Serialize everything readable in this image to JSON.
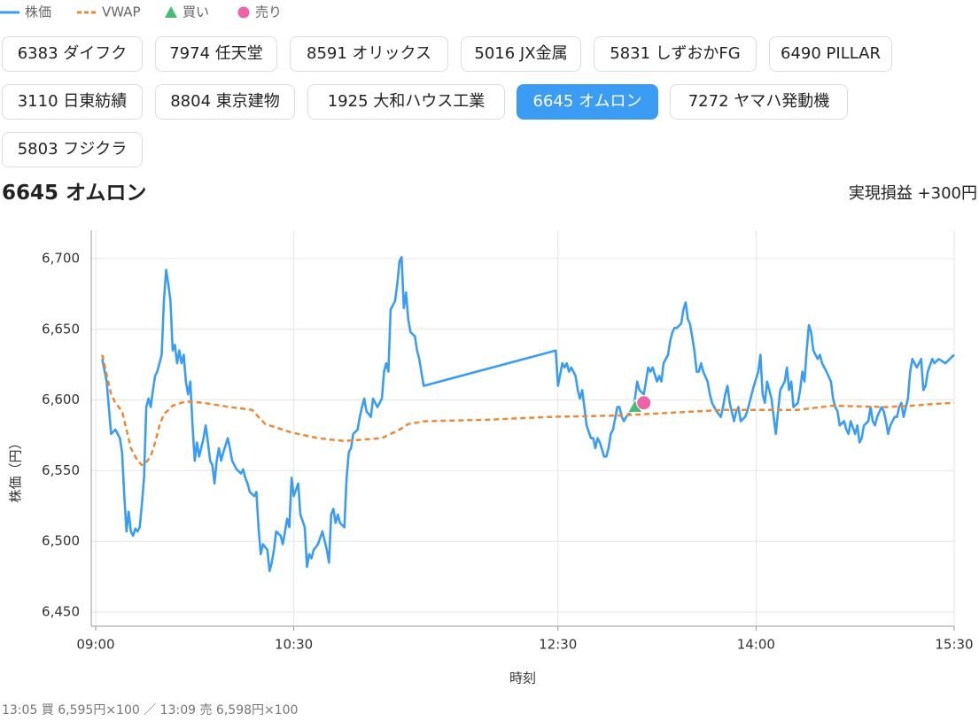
{
  "tabs": [
    "6383 ダイフク",
    "7974 任天堂",
    "8591 オリックス",
    "5016 JX金属",
    "5831 しずおかFG",
    "6490 PILLAR",
    "3110 日東紡績",
    "8804 東京建物",
    "1925 大和ハウス工業",
    "6645 オムロン",
    "7272 ヤマハ発動機",
    "5803 フジクラ"
  ],
  "active_tab": 9,
  "header": {
    "title": "6645 オムロン",
    "pnl": "実現損益 +300円"
  },
  "chart_data": {
    "type": "line",
    "x_label": "時刻",
    "y_label": "株価（円）",
    "xlim": [
      538,
      930
    ],
    "ylim": [
      6440,
      6720
    ],
    "xticks": [
      {
        "value": 540,
        "label": "09:00"
      },
      {
        "value": 630,
        "label": "10:30"
      },
      {
        "value": 750,
        "label": "12:30"
      },
      {
        "value": 840,
        "label": "14:00"
      },
      {
        "value": 930,
        "label": "15:30"
      }
    ],
    "yticks": [
      {
        "value": 6450,
        "label": "6,450"
      },
      {
        "value": 6500,
        "label": "6,500"
      },
      {
        "value": 6550,
        "label": "6,550"
      },
      {
        "value": 6600,
        "label": "6,600"
      },
      {
        "value": 6650,
        "label": "6,650"
      },
      {
        "value": 6700,
        "label": "6,700"
      }
    ],
    "grid": true,
    "legend": "top-left",
    "series": [
      {
        "name": "株価",
        "color": "#3a9df3",
        "style": "solid",
        "x": [
          543,
          545,
          547,
          549,
          551,
          552,
          553,
          554,
          555,
          556,
          557,
          558,
          559,
          560,
          561,
          562,
          563,
          564,
          565,
          566,
          567,
          568,
          569,
          570,
          571,
          572,
          573,
          574,
          575,
          576,
          577,
          578,
          579,
          580,
          581,
          582,
          583,
          584,
          585,
          586,
          587,
          589,
          590,
          591,
          592,
          593,
          594,
          595,
          596,
          597,
          598,
          600,
          601,
          602,
          604,
          606,
          607,
          608,
          609,
          610,
          612,
          613,
          614,
          615,
          616,
          618,
          619,
          620,
          621,
          622,
          624,
          625,
          626,
          627,
          628,
          629,
          630,
          632,
          633,
          635,
          636,
          637,
          638,
          639,
          641,
          643,
          645,
          646,
          647,
          648,
          649,
          650,
          651,
          653,
          654,
          655,
          656,
          657,
          659,
          660,
          661,
          662,
          663,
          665,
          666,
          667,
          668,
          670,
          671,
          672,
          673,
          674,
          676,
          677,
          678,
          679,
          680,
          681,
          682,
          683,
          685,
          686,
          687,
          689,
          749,
          750,
          752,
          753,
          754,
          755,
          756,
          758,
          759,
          760,
          761,
          762,
          763,
          765,
          766,
          767,
          768,
          769,
          771,
          772,
          773,
          774,
          775,
          777,
          778,
          779,
          780,
          781,
          783,
          784,
          785,
          786,
          787,
          789,
          790,
          791,
          792,
          793,
          795,
          796,
          797,
          798,
          800,
          801,
          802,
          803,
          804,
          806,
          807,
          808,
          809,
          810,
          812,
          813,
          814,
          815,
          816,
          818,
          819,
          820,
          821,
          822,
          824,
          825,
          826,
          827,
          828,
          830,
          831,
          832,
          833,
          835,
          836,
          837,
          838,
          839,
          841,
          842,
          843,
          844,
          845,
          847,
          848,
          849,
          850,
          851,
          853,
          854,
          855,
          856,
          857,
          859,
          860,
          861,
          862,
          863,
          864,
          865,
          866,
          868,
          869,
          870,
          871,
          872,
          874,
          875,
          876,
          877,
          878,
          880,
          881,
          882,
          883,
          885,
          886,
          887,
          888,
          889,
          891,
          892,
          893,
          894,
          895,
          897,
          898,
          899,
          900,
          901,
          903,
          904,
          905,
          906,
          907,
          909,
          910,
          911,
          912,
          913,
          915,
          916,
          917,
          918,
          920,
          921,
          923,
          926,
          928,
          930
        ],
        "values": [
          6629,
          6613,
          6576,
          6579,
          6573,
          6563,
          6532,
          6507,
          6521,
          6507,
          6504,
          6509,
          6507,
          6510,
          6526,
          6545,
          6595,
          6601,
          6595,
          6607,
          6617,
          6620,
          6626,
          6632,
          6670,
          6692,
          6682,
          6670,
          6635,
          6639,
          6626,
          6635,
          6626,
          6632,
          6613,
          6604,
          6613,
          6582,
          6557,
          6570,
          6560,
          6573,
          6582,
          6570,
          6557,
          6554,
          6541,
          6557,
          6566,
          6557,
          6563,
          6573,
          6566,
          6557,
          6551,
          6548,
          6551,
          6545,
          6541,
          6535,
          6532,
          6535,
          6510,
          6491,
          6498,
          6494,
          6479,
          6485,
          6494,
          6507,
          6504,
          6498,
          6507,
          6516,
          6510,
          6545,
          6532,
          6541,
          6519,
          6510,
          6482,
          6491,
          6488,
          6494,
          6498,
          6507,
          6494,
          6485,
          6519,
          6523,
          6513,
          6519,
          6513,
          6510,
          6545,
          6563,
          6566,
          6576,
          6579,
          6588,
          6595,
          6601,
          6592,
          6588,
          6601,
          6598,
          6595,
          6601,
          6620,
          6626,
          6620,
          6664,
          6670,
          6682,
          6698,
          6701,
          6665,
          6676,
          6657,
          6648,
          6645,
          6635,
          6629,
          6610,
          6635,
          6610,
          6626,
          6623,
          6626,
          6620,
          6623,
          6617,
          6607,
          6601,
          6607,
          6595,
          6582,
          6573,
          6573,
          6566,
          6573,
          6570,
          6560,
          6560,
          6566,
          6576,
          6579,
          6595,
          6595,
          6588,
          6585,
          6588,
          6592,
          6595,
          6601,
          6613,
          6607,
          6604,
          6613,
          6623,
          6620,
          6623,
          6613,
          6617,
          6613,
          6626,
          6632,
          6642,
          6648,
          6651,
          6651,
          6654,
          6664,
          6669,
          6657,
          6654,
          6635,
          6620,
          6620,
          6626,
          6620,
          6613,
          6604,
          6598,
          6595,
          6592,
          6588,
          6595,
          6604,
          6610,
          6598,
          6585,
          6592,
          6595,
          6585,
          6588,
          6592,
          6598,
          6604,
          6610,
          6620,
          6632,
          6604,
          6598,
          6613,
          6601,
          6588,
          6576,
          6592,
          6607,
          6613,
          6623,
          6607,
          6613,
          6595,
          6598,
          6607,
          6620,
          6613,
          6635,
          6653,
          6648,
          6635,
          6629,
          6632,
          6626,
          6623,
          6620,
          6613,
          6601,
          6595,
          6592,
          6582,
          6585,
          6579,
          6576,
          6585,
          6576,
          6582,
          6570,
          6573,
          6582,
          6585,
          6595,
          6585,
          6582,
          6588,
          6595,
          6592,
          6585,
          6576,
          6582,
          6588,
          6588,
          6595,
          6598,
          6588,
          6601,
          6620,
          6629,
          6626,
          6623,
          6629,
          6607,
          6610,
          6620,
          6629,
          6626,
          6629,
          6626,
          6629,
          6632
        ]
      },
      {
        "name": "VWAP",
        "color": "#ed8936",
        "style": "dashed",
        "x": [
          543,
          547,
          549,
          552,
          554,
          556,
          559,
          561,
          563,
          565,
          567,
          569,
          571,
          575,
          581,
          589,
          601,
          611,
          614,
          617,
          623,
          629,
          641,
          653,
          670,
          678,
          682,
          690,
          718,
          746,
          778,
          802,
          826,
          859,
          875,
          899,
          911,
          919,
          930
        ],
        "values": [
          6632,
          6604,
          6598,
          6592,
          6579,
          6566,
          6557,
          6554,
          6556,
          6560,
          6570,
          6582,
          6590,
          6596,
          6599,
          6598,
          6595,
          6593,
          6588,
          6583,
          6580,
          6577,
          6573,
          6571,
          6573,
          6579,
          6583,
          6585,
          6586,
          6588,
          6589,
          6591,
          6593,
          6593,
          6596,
          6595,
          6596,
          6597,
          6598
        ]
      },
      {
        "name": "買い",
        "color": "#48bb78",
        "marker": "triangle",
        "x": [
          785
        ],
        "values": [
          6595
        ]
      },
      {
        "name": "売り",
        "color": "#ed64a6",
        "marker": "circle",
        "x": [
          789
        ],
        "values": [
          6598
        ]
      }
    ]
  },
  "footer": "13:05 買 6,595円×100 ／ 13:09 売 6,598円×100"
}
